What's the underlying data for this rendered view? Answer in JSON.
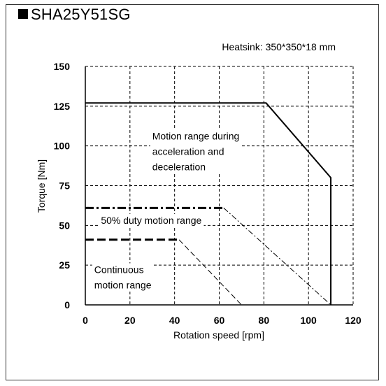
{
  "title": "SHA25Y51SG",
  "chart_data": {
    "type": "line",
    "title": "SHA25Y51SG",
    "note": "Heatsink: 350*350*18 mm",
    "xlabel": "Rotation speed [rpm]",
    "ylabel": "Torque [Nm]",
    "xlim": [
      0,
      120
    ],
    "ylim": [
      0,
      150
    ],
    "xticks": [
      "0",
      "20",
      "40",
      "60",
      "80",
      "100",
      "120"
    ],
    "yticks": [
      "0",
      "25",
      "50",
      "75",
      "100",
      "125",
      "150"
    ],
    "grid": true,
    "series": [
      {
        "style": "solid",
        "width": 2,
        "dash": "",
        "x": [
          0,
          81,
          110,
          110
        ],
        "y": [
          127,
          127,
          80,
          0
        ]
      },
      {
        "style": "dash-dot-heavy",
        "width": 3,
        "dash": "12,4,3,4",
        "x": [
          0,
          62
        ],
        "y": [
          61,
          61
        ]
      },
      {
        "style": "dash-dot-thin",
        "width": 1,
        "dash": "8,3,2,3",
        "x": [
          62,
          110
        ],
        "y": [
          61,
          0
        ]
      },
      {
        "style": "dashed-heavy",
        "width": 3,
        "dash": "12,5",
        "x": [
          0,
          42
        ],
        "y": [
          41,
          41
        ]
      },
      {
        "style": "dashed-thin",
        "width": 1,
        "dash": "8,4",
        "x": [
          42,
          70
        ],
        "y": [
          41,
          0
        ]
      }
    ],
    "annotations": [
      {
        "lines": [
          "Motion range during",
          "acceleration and",
          "deceleration"
        ],
        "x": 30,
        "y": 104
      },
      {
        "lines": [
          "50% duty motion range"
        ],
        "x": 7,
        "y": 51
      },
      {
        "lines": [
          "Continuous",
          "motion range"
        ],
        "x": 4,
        "y": 20
      }
    ]
  }
}
